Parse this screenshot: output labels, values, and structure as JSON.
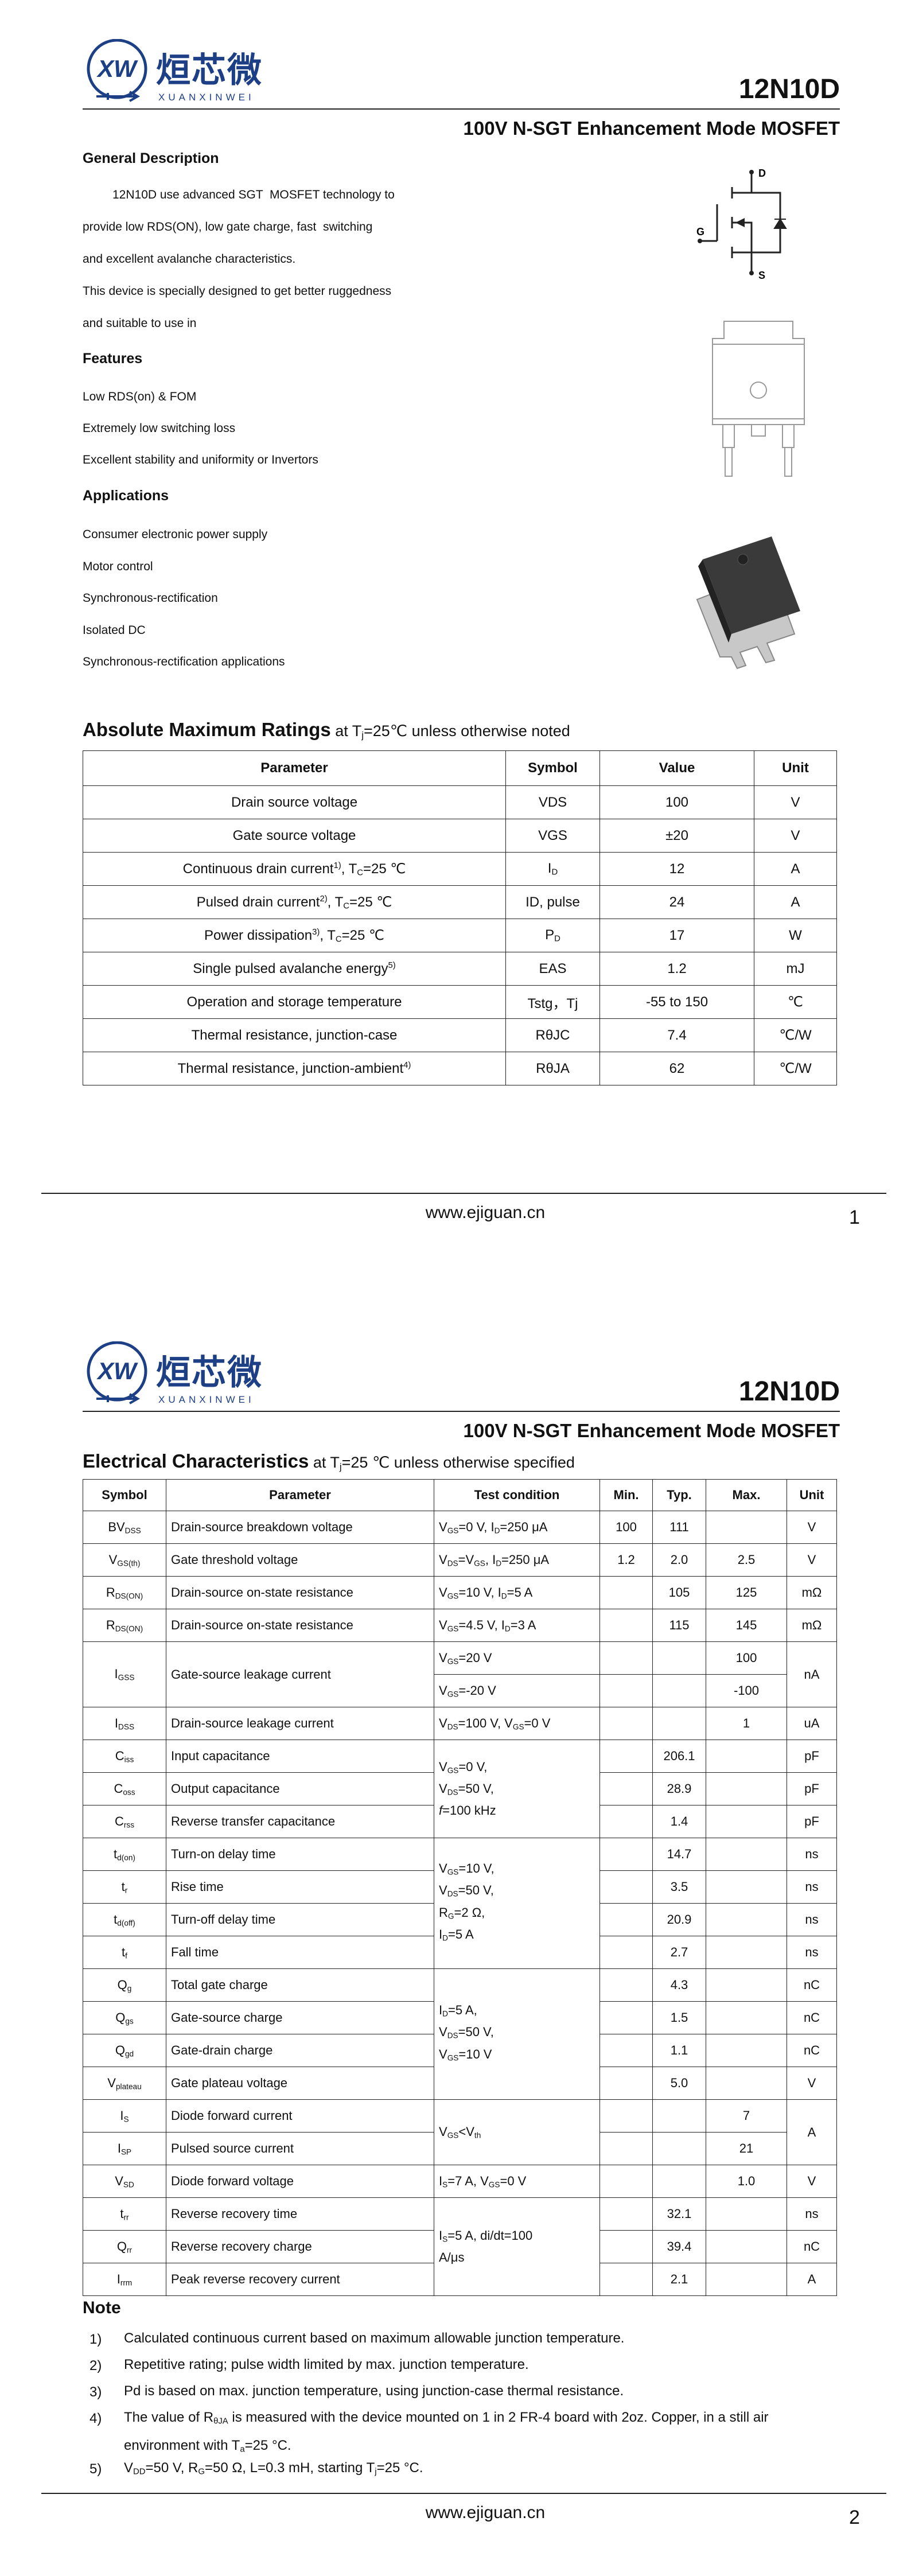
{
  "pages": [
    {
      "header": {
        "logo": {
          "mark": "XW",
          "name": "烜芯微",
          "pinyin": "XUANXINWEI"
        },
        "part": "12N10D",
        "subtitle": "100V N-SGT Enhancement Mode MOSFET"
      },
      "general_description": {
        "title": "General Description",
        "lines": [
          "12N10D use advanced SGT  MOSFET technology to",
          "provide low RDS(ON), low gate charge, fast  switching",
          "and excellent avalanche characteristics.",
          "This device is specially designed to get better ruggedness",
          "and suitable to use in"
        ]
      },
      "features": {
        "title": "Features",
        "items": [
          "Low RDS(on) & FOM",
          "Extremely low switching loss",
          "Excellent stability and uniformity or Invertors"
        ]
      },
      "applications": {
        "title": "Applications",
        "items": [
          "Consumer electronic power supply",
          "Motor control",
          "Synchronous-rectification",
          "Isolated DC",
          "Synchronous-rectification applications"
        ]
      },
      "symbol": {
        "d": "D",
        "g": "G",
        "s": "S"
      },
      "absolute_max": {
        "title": [
          {
            "b": "Absolute Maximum Ratings"
          },
          " at T",
          {
            "sub": "j"
          },
          "=25℃ unless otherwise noted"
        ],
        "header": [
          "Parameter",
          "Symbol",
          "Value",
          "Unit"
        ],
        "rows": [
          [
            "Drain source voltage",
            "VDS",
            "100",
            "V"
          ],
          [
            "Gate source voltage",
            "VGS",
            "±20",
            "V"
          ],
          [
            [
              "Continuous drain current",
              {
                "sup": "1)"
              },
              ", T",
              {
                "sub": "C"
              },
              "=25 ℃"
            ],
            [
              "I",
              {
                "sub": "D"
              }
            ],
            "12",
            "A"
          ],
          [
            [
              "Pulsed drain current",
              {
                "sup": "2)"
              },
              ", T",
              {
                "sub": "C"
              },
              "=25 ℃"
            ],
            "ID, pulse",
            "24",
            "A"
          ],
          [
            [
              "Power dissipation",
              {
                "sup": "3)"
              },
              ", T",
              {
                "sub": "C"
              },
              "=25 ℃"
            ],
            [
              "P",
              {
                "sub": "D"
              }
            ],
            "17",
            "W"
          ],
          [
            [
              "Single pulsed avalanche energy",
              {
                "sup": "5)"
              }
            ],
            "EAS",
            "1.2",
            "mJ"
          ],
          [
            "Operation and storage temperature",
            "Tstg，Tj",
            "-55 to 150",
            "℃"
          ],
          [
            "Thermal resistance, junction-case",
            "RθJC",
            "7.4",
            "℃/W"
          ],
          [
            [
              "Thermal resistance, junction-ambient",
              {
                "sup": "4)"
              }
            ],
            "RθJA",
            "62",
            "℃/W"
          ]
        ]
      },
      "footer": {
        "url": "www.ejiguan.cn",
        "page": "1"
      }
    },
    {
      "header": {
        "logo": {
          "mark": "XW",
          "name": "烜芯微",
          "pinyin": "XUANXINWEI"
        },
        "part": "12N10D",
        "subtitle": "100V N-SGT Enhancement Mode MOSFET"
      },
      "electrical": {
        "title": [
          {
            "b": "Electrical Characteristics"
          },
          " at T",
          {
            "sub": "j"
          },
          "=25 ℃ unless otherwise specified"
        ],
        "header": [
          "Symbol",
          "Parameter",
          "Test condition",
          "Min.",
          "Typ.",
          "Max.",
          "Unit"
        ],
        "rows": [
          [
            [
              "BV",
              {
                "sub": "DSS"
              }
            ],
            "Drain-source breakdown voltage",
            [
              "V",
              {
                "sub": "GS"
              },
              "=0 V, I",
              {
                "sub": "D"
              },
              "=250 μA"
            ],
            "100",
            "111",
            null,
            "V"
          ],
          [
            [
              "V",
              {
                "sub": "GS(th)"
              }
            ],
            "Gate threshold voltage",
            [
              "V",
              {
                "sub": "DS"
              },
              "=V",
              {
                "sub": "GS"
              },
              ", I",
              {
                "sub": "D"
              },
              "=250 μA"
            ],
            "1.2",
            "2.0",
            "2.5",
            "V"
          ],
          [
            [
              "R",
              {
                "sub": "DS(ON)"
              }
            ],
            "Drain-source on-state resistance",
            [
              "V",
              {
                "sub": "GS"
              },
              "=10 V, I",
              {
                "sub": "D"
              },
              "=5 A"
            ],
            null,
            "105",
            "125",
            "mΩ"
          ],
          [
            [
              "R",
              {
                "sub": "DS(ON)"
              }
            ],
            "Drain-source on-state resistance",
            [
              "V",
              {
                "sub": "GS"
              },
              "=4.5 V, I",
              {
                "sub": "D"
              },
              "=3 A"
            ],
            null,
            "115",
            "145",
            "mΩ"
          ],
          [
            [
              "I",
              {
                "sub": "GSS"
              }
            ],
            "Gate-source leakage current",
            [
              "V",
              {
                "sub": "GS"
              },
              "=20 V"
            ],
            null,
            null,
            "100",
            "nA"
          ],
          [
            [
              "V",
              {
                "sub": "GS"
              },
              "=-20 V"
            ],
            null,
            null,
            "-100"
          ],
          [
            [
              "I",
              {
                "sub": "DSS"
              }
            ],
            "Drain-source leakage current",
            [
              "V",
              {
                "sub": "DS"
              },
              "=100 V, V",
              {
                "sub": "GS"
              },
              "=0 V"
            ],
            null,
            null,
            "1",
            "uA"
          ],
          [
            [
              "C",
              {
                "sub": "iss"
              }
            ],
            "Input capacitance",
            {
              "lines": [
                [
                  "V",
                  {
                    "sub": "GS"
                  },
                  "=0 V,"
                ],
                [
                  "V",
                  {
                    "sub": "DS"
                  },
                  "=50 V,"
                ],
                [
                  {
                    "i": "f"
                  },
                  "=100 kHz"
                ]
              ]
            },
            null,
            "206.1",
            null,
            "pF"
          ],
          [
            [
              "C",
              {
                "sub": "oss"
              }
            ],
            "Output capacitance",
            null,
            "28.9",
            null,
            "pF"
          ],
          [
            [
              "C",
              {
                "sub": "rss"
              }
            ],
            "Reverse transfer capacitance",
            null,
            "1.4",
            null,
            "pF"
          ],
          [
            [
              "t",
              {
                "sub": "d(on)"
              }
            ],
            "Turn-on delay time",
            {
              "lines": [
                [
                  "V",
                  {
                    "sub": "GS"
                  },
                  "=10 V,"
                ],
                [
                  "V",
                  {
                    "sub": "DS"
                  },
                  "=50 V,"
                ],
                [
                  "R",
                  {
                    "sub": "G"
                  },
                  "=2 Ω,"
                ],
                [
                  "I",
                  {
                    "sub": "D"
                  },
                  "=5 A"
                ]
              ]
            },
            null,
            "14.7",
            null,
            "ns"
          ],
          [
            [
              "t",
              {
                "sub": "r"
              }
            ],
            "Rise time",
            null,
            "3.5",
            null,
            "ns"
          ],
          [
            [
              "t",
              {
                "sub": "d(off)"
              }
            ],
            "Turn-off delay time",
            null,
            "20.9",
            null,
            "ns"
          ],
          [
            [
              "t",
              {
                "sub": "f"
              }
            ],
            "Fall time",
            null,
            "2.7",
            null,
            "ns"
          ],
          [
            [
              "Q",
              {
                "sub": "g"
              }
            ],
            "Total gate charge",
            {
              "lines": [
                [
                  "I",
                  {
                    "sub": "D"
                  },
                  "=5 A,"
                ],
                [
                  "V",
                  {
                    "sub": "DS"
                  },
                  "=50 V,"
                ],
                [
                  "V",
                  {
                    "sub": "GS"
                  },
                  "=10 V"
                ]
              ]
            },
            null,
            "4.3",
            null,
            "nC"
          ],
          [
            [
              "Q",
              {
                "sub": "gs"
              }
            ],
            "Gate-source charge",
            null,
            "1.5",
            null,
            "nC"
          ],
          [
            [
              "Q",
              {
                "sub": "gd"
              }
            ],
            "Gate-drain charge",
            null,
            "1.1",
            null,
            "nC"
          ],
          [
            [
              "V",
              {
                "sub": "plateau"
              }
            ],
            "Gate plateau voltage",
            null,
            "5.0",
            null,
            "V"
          ],
          [
            [
              "I",
              {
                "sub": "S"
              }
            ],
            "Diode forward current",
            [
              "V",
              {
                "sub": "GS"
              },
              "<V",
              {
                "sub": "th"
              }
            ],
            null,
            null,
            "7",
            "A"
          ],
          [
            [
              "I",
              {
                "sub": "SP"
              }
            ],
            "Pulsed source current",
            null,
            null,
            "21"
          ],
          [
            [
              "V",
              {
                "sub": "SD"
              }
            ],
            "Diode forward voltage",
            [
              "I",
              {
                "sub": "S"
              },
              "=7 A, V",
              {
                "sub": "GS"
              },
              "=0 V"
            ],
            null,
            null,
            "1.0",
            "V"
          ],
          [
            [
              "t",
              {
                "sub": "rr"
              }
            ],
            "Reverse recovery time",
            {
              "lines": [
                [
                  "I",
                  {
                    "sub": "S"
                  },
                  "=5 A,  di/dt=100"
                ],
                "A/μs"
              ]
            },
            null,
            "32.1",
            null,
            "ns"
          ],
          [
            [
              "Q",
              {
                "sub": "rr"
              }
            ],
            "Reverse recovery charge",
            null,
            "39.4",
            null,
            "nC"
          ],
          [
            [
              "I",
              {
                "sub": "rrm"
              }
            ],
            "Peak reverse recovery current",
            null,
            "2.1",
            null,
            "A"
          ]
        ]
      },
      "note": {
        "title": "Note",
        "items": [
          {
            "num": "1)",
            "text": "Calculated continuous current based on maximum allowable junction temperature."
          },
          {
            "num": "2)",
            "text": "Repetitive rating; pulse width limited by max. junction temperature."
          },
          {
            "num": "3)",
            "text": "Pd is based on max. junction temperature, using junction-case thermal resistance."
          },
          {
            "num": "4)",
            "text": [
              "The value of R",
              {
                "sub": "θJA"
              },
              " is measured with the device mounted on 1 in 2 FR-4 board with 2oz. Copper, in a still air environment with T",
              {
                "sub": "a"
              },
              "=25 °C."
            ]
          },
          {
            "num": "5)",
            "text": [
              "V",
              {
                "sub": "DD"
              },
              "=50 V, R",
              {
                "sub": "G"
              },
              "=50 Ω, L=0.3 mH, starting T",
              {
                "sub": "j"
              },
              "=25 °C."
            ]
          }
        ]
      },
      "footer": {
        "url": "www.ejiguan.cn",
        "page": "2"
      }
    }
  ]
}
